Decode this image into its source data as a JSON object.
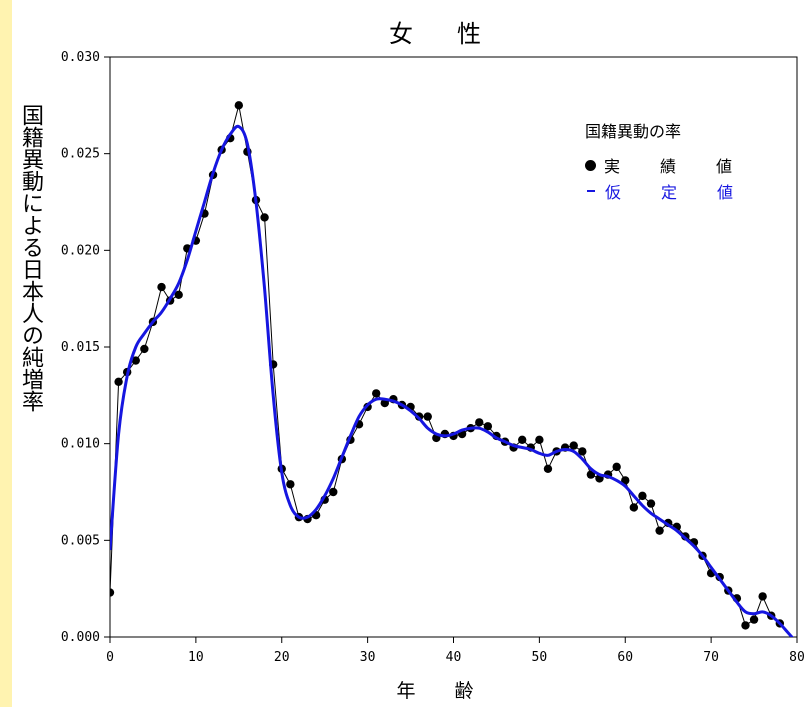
{
  "chart_data": {
    "type": "line",
    "title": "女　性",
    "xlabel": "年　齢",
    "ylabel": "国籍異動による日本人の純増率",
    "xlim": [
      0,
      80
    ],
    "ylim": [
      0.0,
      0.03
    ],
    "x_ticks": [
      0,
      10,
      20,
      30,
      40,
      50,
      60,
      70,
      80
    ],
    "y_ticks": [
      "0.000",
      "0.005",
      "0.010",
      "0.015",
      "0.020",
      "0.025",
      "0.030"
    ],
    "grid": false,
    "legend": {
      "title": "国籍異動の率",
      "placement": "top-right",
      "entries": [
        {
          "marker": "●",
          "label": "実　績　値",
          "color": "#000000"
        },
        {
          "marker": "－",
          "label": "仮　定　値",
          "color": "#1616e0"
        }
      ]
    },
    "series": [
      {
        "name": "実　績　値",
        "style": "points-connected",
        "color": "#000000",
        "x": [
          0,
          1,
          2,
          3,
          4,
          5,
          6,
          7,
          8,
          9,
          10,
          11,
          12,
          13,
          14,
          15,
          16,
          17,
          18,
          19,
          20,
          21,
          22,
          23,
          24,
          25,
          26,
          27,
          28,
          29,
          30,
          31,
          32,
          33,
          34,
          35,
          36,
          37,
          38,
          39,
          40,
          41,
          42,
          43,
          44,
          45,
          46,
          47,
          48,
          49,
          50,
          51,
          52,
          53,
          54,
          55,
          56,
          57,
          58,
          59,
          60,
          61,
          62,
          63,
          64,
          65,
          66,
          67,
          68,
          69,
          70,
          71,
          72,
          73,
          74,
          75,
          76,
          77,
          78
        ],
        "y": [
          0.0023,
          0.0132,
          0.0137,
          0.0143,
          0.0149,
          0.0163,
          0.0181,
          0.0174,
          0.0177,
          0.0201,
          0.0205,
          0.0219,
          0.0239,
          0.0252,
          0.0258,
          0.0275,
          0.0251,
          0.0226,
          0.0217,
          0.0141,
          0.0087,
          0.0079,
          0.0062,
          0.0061,
          0.0063,
          0.0071,
          0.0075,
          0.0092,
          0.0102,
          0.011,
          0.0119,
          0.0126,
          0.0121,
          0.0123,
          0.012,
          0.0119,
          0.0114,
          0.0114,
          0.0103,
          0.0105,
          0.0104,
          0.0105,
          0.0108,
          0.0111,
          0.0109,
          0.0104,
          0.0101,
          0.0098,
          0.0102,
          0.0098,
          0.0102,
          0.0087,
          0.0096,
          0.0098,
          0.0099,
          0.0096,
          0.0084,
          0.0082,
          0.0084,
          0.0088,
          0.0081,
          0.0067,
          0.0073,
          0.0069,
          0.0055,
          0.0059,
          0.0057,
          0.0052,
          0.0049,
          0.0042,
          0.0033,
          0.0031,
          0.0024,
          0.002,
          0.0006,
          0.0009,
          0.0021,
          0.0011,
          0.0007
        ]
      },
      {
        "name": "仮　定　値",
        "style": "smooth-line",
        "color": "#1616e0",
        "x": [
          0,
          1,
          2,
          3,
          4,
          5,
          6,
          7,
          8,
          9,
          10,
          11,
          12,
          13,
          14,
          15,
          16,
          17,
          18,
          19,
          20,
          21,
          22,
          23,
          24,
          25,
          26,
          27,
          28,
          29,
          30,
          31,
          32,
          33,
          34,
          35,
          36,
          37,
          38,
          39,
          40,
          41,
          42,
          43,
          44,
          45,
          46,
          47,
          48,
          49,
          50,
          51,
          52,
          53,
          54,
          55,
          56,
          57,
          58,
          59,
          60,
          61,
          62,
          63,
          64,
          65,
          66,
          67,
          68,
          69,
          70,
          71,
          72,
          73,
          74,
          75,
          76,
          77,
          78,
          79,
          80
        ],
        "y": [
          0.0045,
          0.0105,
          0.0135,
          0.015,
          0.0157,
          0.0163,
          0.0168,
          0.0175,
          0.0183,
          0.0195,
          0.021,
          0.0225,
          0.024,
          0.0252,
          0.026,
          0.0264,
          0.0255,
          0.0225,
          0.018,
          0.0125,
          0.0085,
          0.0068,
          0.0062,
          0.0062,
          0.0066,
          0.0073,
          0.0082,
          0.0093,
          0.0104,
          0.0114,
          0.012,
          0.0123,
          0.0123,
          0.0122,
          0.012,
          0.0117,
          0.0113,
          0.0108,
          0.0105,
          0.0104,
          0.0105,
          0.0107,
          0.0108,
          0.0108,
          0.0106,
          0.0103,
          0.0101,
          0.0099,
          0.0098,
          0.0097,
          0.0095,
          0.0094,
          0.0096,
          0.0097,
          0.0096,
          0.0092,
          0.0087,
          0.0084,
          0.0083,
          0.0081,
          0.0078,
          0.0073,
          0.0068,
          0.0064,
          0.0061,
          0.0058,
          0.0055,
          0.0051,
          0.0047,
          0.0042,
          0.0036,
          0.003,
          0.0024,
          0.0018,
          0.0013,
          0.0012,
          0.0013,
          0.0011,
          0.0007,
          0.0002,
          -0.0003
        ]
      }
    ]
  }
}
